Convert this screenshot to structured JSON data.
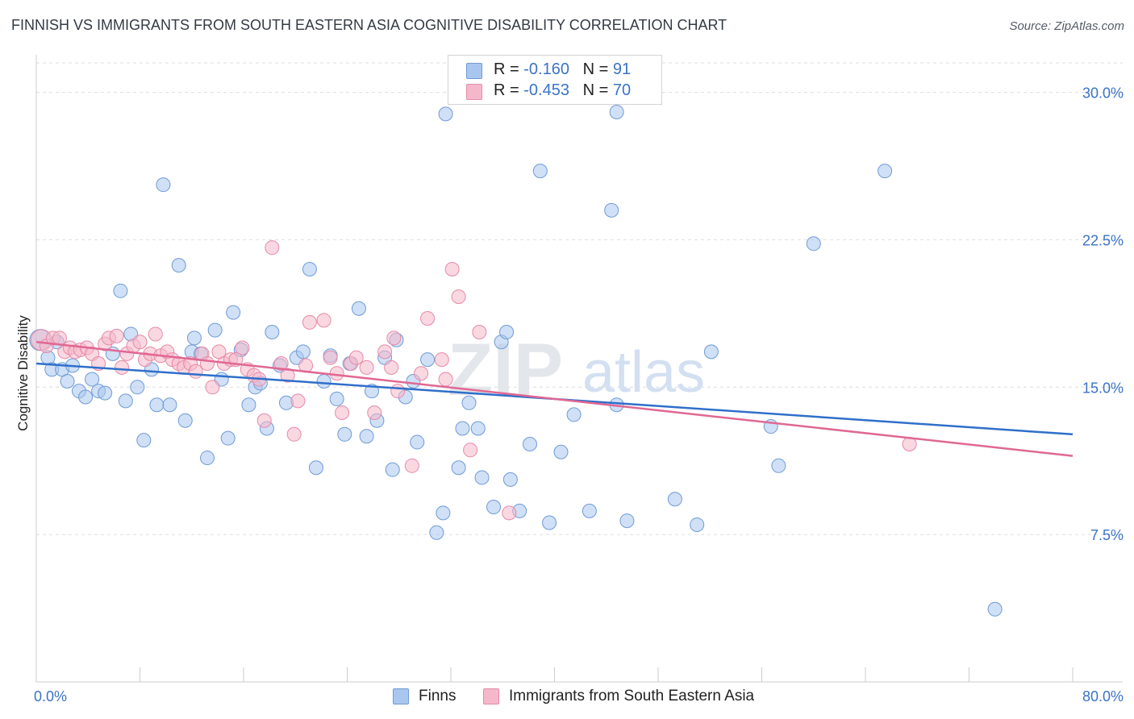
{
  "header": {
    "title": "FINNISH VS IMMIGRANTS FROM SOUTH EASTERN ASIA COGNITIVE DISABILITY CORRELATION CHART",
    "source": "Source: ZipAtlas.com"
  },
  "watermark": {
    "zip": "ZIP",
    "atlas": "atlas"
  },
  "legend_top": {
    "finns": {
      "r_label": "R =",
      "r_value": "-0.160",
      "n_label": "N =",
      "n_value": "91"
    },
    "immigrants": {
      "r_label": "R =",
      "r_value": "-0.453",
      "n_label": "N =",
      "n_value": "70"
    }
  },
  "legend_bottom": {
    "finns": "Finns",
    "immigrants": "Immigrants from South Eastern Asia"
  },
  "colors": {
    "finns_fill": "#a9c7ee",
    "finns_stroke": "#6f9bd6",
    "finns_line": "#2f6fc9",
    "immig_fill": "#f5b8cb",
    "immig_stroke": "#e68aa8",
    "immig_line": "#e06893",
    "axis_text": "#3a73c8",
    "grid": "#dddddd"
  },
  "chart_data": {
    "type": "scatter",
    "title": "FINNISH VS IMMIGRANTS FROM SOUTH EASTERN ASIA COGNITIVE DISABILITY CORRELATION CHART",
    "xlabel": "",
    "ylabel": "Cognitive Disability",
    "xlim": [
      0,
      80
    ],
    "ylim": [
      0,
      31.5
    ],
    "x_tick_labels": [
      "0.0%",
      "80.0%"
    ],
    "y_ticks": [
      7.5,
      15.0,
      22.5,
      30.0
    ],
    "y_tick_labels": [
      "7.5%",
      "15.0%",
      "22.5%",
      "30.0%"
    ],
    "grid": "horizontal dashed",
    "legend_placement": "top-center and bottom",
    "series": [
      {
        "name": "Finns",
        "r": -0.16,
        "n": 91,
        "trend": {
          "x": [
            0,
            80
          ],
          "y": [
            16.2,
            12.6
          ]
        },
        "points": [
          [
            0.3,
            17.4
          ],
          [
            0.9,
            16.5
          ],
          [
            1.2,
            15.9
          ],
          [
            1.6,
            17.3
          ],
          [
            2.0,
            15.9
          ],
          [
            2.4,
            15.3
          ],
          [
            2.8,
            16.1
          ],
          [
            3.3,
            14.8
          ],
          [
            3.8,
            14.5
          ],
          [
            4.3,
            15.4
          ],
          [
            4.8,
            14.8
          ],
          [
            5.3,
            14.7
          ],
          [
            5.9,
            16.7
          ],
          [
            6.5,
            19.9
          ],
          [
            6.9,
            14.3
          ],
          [
            7.3,
            17.7
          ],
          [
            7.8,
            15.0
          ],
          [
            8.3,
            12.3
          ],
          [
            8.9,
            15.9
          ],
          [
            9.3,
            14.1
          ],
          [
            9.8,
            25.3
          ],
          [
            10.3,
            14.1
          ],
          [
            11.0,
            21.2
          ],
          [
            11.5,
            13.3
          ],
          [
            12.0,
            16.8
          ],
          [
            12.2,
            17.5
          ],
          [
            12.7,
            16.7
          ],
          [
            13.2,
            11.4
          ],
          [
            13.8,
            17.9
          ],
          [
            14.3,
            15.4
          ],
          [
            14.8,
            12.4
          ],
          [
            15.2,
            18.8
          ],
          [
            15.8,
            16.9
          ],
          [
            16.4,
            14.1
          ],
          [
            16.9,
            15.0
          ],
          [
            17.3,
            15.2
          ],
          [
            17.8,
            12.9
          ],
          [
            18.2,
            17.8
          ],
          [
            18.8,
            16.1
          ],
          [
            19.3,
            14.2
          ],
          [
            20.1,
            16.5
          ],
          [
            20.6,
            16.8
          ],
          [
            21.1,
            21.0
          ],
          [
            21.6,
            10.9
          ],
          [
            22.2,
            15.3
          ],
          [
            22.7,
            16.6
          ],
          [
            23.2,
            14.4
          ],
          [
            23.8,
            12.6
          ],
          [
            24.2,
            16.2
          ],
          [
            24.9,
            19.0
          ],
          [
            25.5,
            12.5
          ],
          [
            25.9,
            14.8
          ],
          [
            26.3,
            13.3
          ],
          [
            26.9,
            16.5
          ],
          [
            27.5,
            10.8
          ],
          [
            27.8,
            17.4
          ],
          [
            28.5,
            14.5
          ],
          [
            29.1,
            15.3
          ],
          [
            29.4,
            12.2
          ],
          [
            30.2,
            16.4
          ],
          [
            30.9,
            7.6
          ],
          [
            31.4,
            8.6
          ],
          [
            31.6,
            28.9
          ],
          [
            32.6,
            10.9
          ],
          [
            32.9,
            12.9
          ],
          [
            33.4,
            14.2
          ],
          [
            34.1,
            12.9
          ],
          [
            34.4,
            10.4
          ],
          [
            35.3,
            8.9
          ],
          [
            35.9,
            17.3
          ],
          [
            36.3,
            17.8
          ],
          [
            36.6,
            10.3
          ],
          [
            37.3,
            8.7
          ],
          [
            38.1,
            12.1
          ],
          [
            38.9,
            26.0
          ],
          [
            39.6,
            8.1
          ],
          [
            40.5,
            11.7
          ],
          [
            41.5,
            13.6
          ],
          [
            42.7,
            8.7
          ],
          [
            44.4,
            24.0
          ],
          [
            44.8,
            29.0
          ],
          [
            44.8,
            14.1
          ],
          [
            45.6,
            8.2
          ],
          [
            49.3,
            9.3
          ],
          [
            51.0,
            8.0
          ],
          [
            52.1,
            16.8
          ],
          [
            56.7,
            13.0
          ],
          [
            57.3,
            11.0
          ],
          [
            60.0,
            22.3
          ],
          [
            65.5,
            26.0
          ],
          [
            74.0,
            3.7
          ]
        ]
      },
      {
        "name": "Immigrants from South Eastern Asia",
        "r": -0.453,
        "n": 70,
        "trend": {
          "x": [
            0,
            80
          ],
          "y": [
            17.3,
            11.5
          ]
        },
        "points": [
          [
            0.4,
            17.4
          ],
          [
            0.8,
            17.1
          ],
          [
            1.3,
            17.5
          ],
          [
            1.8,
            17.5
          ],
          [
            2.2,
            16.8
          ],
          [
            2.6,
            17.0
          ],
          [
            3.0,
            16.8
          ],
          [
            3.4,
            16.9
          ],
          [
            3.9,
            17.0
          ],
          [
            4.3,
            16.7
          ],
          [
            4.8,
            16.2
          ],
          [
            5.3,
            17.2
          ],
          [
            5.6,
            17.5
          ],
          [
            6.2,
            17.6
          ],
          [
            6.6,
            16.0
          ],
          [
            7.0,
            16.7
          ],
          [
            7.5,
            17.1
          ],
          [
            8.0,
            17.3
          ],
          [
            8.4,
            16.4
          ],
          [
            8.8,
            16.7
          ],
          [
            9.2,
            17.7
          ],
          [
            9.6,
            16.6
          ],
          [
            10.1,
            16.8
          ],
          [
            10.5,
            16.4
          ],
          [
            11.0,
            16.2
          ],
          [
            11.4,
            16.0
          ],
          [
            11.9,
            16.2
          ],
          [
            12.3,
            15.8
          ],
          [
            12.8,
            16.7
          ],
          [
            13.2,
            16.2
          ],
          [
            13.6,
            15.0
          ],
          [
            14.1,
            16.8
          ],
          [
            14.5,
            16.2
          ],
          [
            15.0,
            16.4
          ],
          [
            15.4,
            16.4
          ],
          [
            15.9,
            17.0
          ],
          [
            16.3,
            15.9
          ],
          [
            16.8,
            15.6
          ],
          [
            17.2,
            15.4
          ],
          [
            17.6,
            13.3
          ],
          [
            18.2,
            22.1
          ],
          [
            18.9,
            16.2
          ],
          [
            19.4,
            15.6
          ],
          [
            19.9,
            12.6
          ],
          [
            20.2,
            14.3
          ],
          [
            20.8,
            16.1
          ],
          [
            21.1,
            18.3
          ],
          [
            22.2,
            18.4
          ],
          [
            22.7,
            16.5
          ],
          [
            23.2,
            15.7
          ],
          [
            23.6,
            13.7
          ],
          [
            24.3,
            16.2
          ],
          [
            24.7,
            16.5
          ],
          [
            25.5,
            16.0
          ],
          [
            26.1,
            13.7
          ],
          [
            26.9,
            16.8
          ],
          [
            27.4,
            16.0
          ],
          [
            27.6,
            17.5
          ],
          [
            27.9,
            14.8
          ],
          [
            29.0,
            11.0
          ],
          [
            29.7,
            15.7
          ],
          [
            30.2,
            18.5
          ],
          [
            31.3,
            16.4
          ],
          [
            31.6,
            15.4
          ],
          [
            32.1,
            21.0
          ],
          [
            32.6,
            19.6
          ],
          [
            33.5,
            11.8
          ],
          [
            34.2,
            17.8
          ],
          [
            36.5,
            8.6
          ],
          [
            67.4,
            12.1
          ]
        ]
      }
    ]
  }
}
